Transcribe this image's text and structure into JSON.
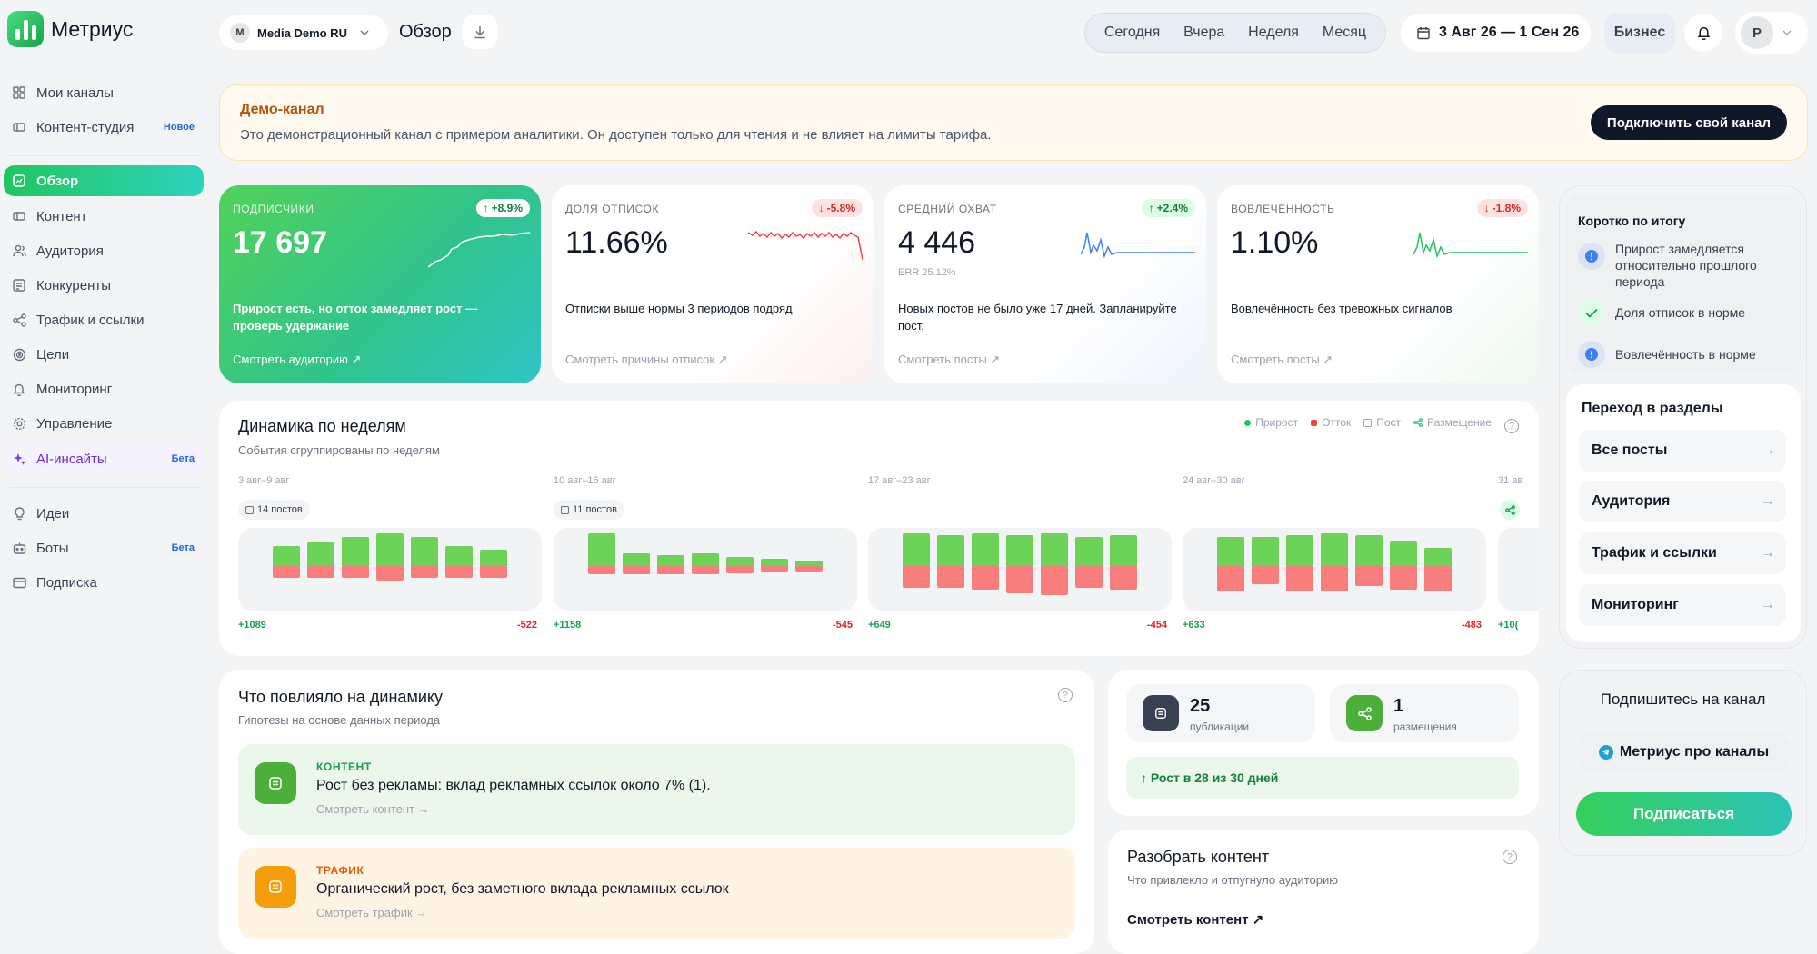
{
  "app": {
    "name": "Метриус"
  },
  "sidebar": {
    "items": [
      {
        "label": "Мои каналы",
        "icon": "grid-icon"
      },
      {
        "label": "Контент-студия",
        "badge": "Новое",
        "icon": "studio-icon"
      },
      {
        "label": "Обзор",
        "active": true,
        "icon": "overview-icon"
      },
      {
        "label": "Контент",
        "icon": "content-icon"
      },
      {
        "label": "Аудитория",
        "icon": "users-icon"
      },
      {
        "label": "Конкуренты",
        "icon": "competitors-icon"
      },
      {
        "label": "Трафик и ссылки",
        "icon": "share-icon"
      },
      {
        "label": "Цели",
        "icon": "target-icon"
      },
      {
        "label": "Мониторинг",
        "icon": "bell-icon"
      },
      {
        "label": "Управление",
        "icon": "gear-icon"
      },
      {
        "label": "AI-инсайты",
        "badge": "Бета",
        "icon": "sparkle-icon"
      },
      {
        "label": "Идеи",
        "icon": "bulb-icon"
      },
      {
        "label": "Боты",
        "badge": "Бета",
        "icon": "bot-icon"
      },
      {
        "label": "Подписка",
        "icon": "card-icon"
      }
    ]
  },
  "header": {
    "workspace": {
      "initial": "M",
      "name": "Media Demo RU"
    },
    "page_title": "Обзор",
    "periods": [
      "Сегодня",
      "Вчера",
      "Неделя",
      "Месяц"
    ],
    "date_range": "3 Авг 26 — 1 Сен 26",
    "plan": "Бизнес",
    "avatar": "P"
  },
  "banner": {
    "title": "Демо-канал",
    "text": "Это демонстрационный канал с примером аналитики. Он доступен только для чтения и не влияет на лимиты тарифа.",
    "button": "Подключить свой канал"
  },
  "kpis": [
    {
      "label": "ПОДПИСЧИКИ",
      "value": "17 697",
      "delta": "+8.9%",
      "direction": "up",
      "desc": "Прирост есть, но отток замедляет рост — проверь удержание",
      "link": "Смотреть аудиторию ↗"
    },
    {
      "label": "ДОЛЯ ОТПИСОК",
      "value": "11.66%",
      "delta": "-5.8%",
      "direction": "down",
      "desc": "Отписки выше нормы 3 периодов подряд",
      "link": "Смотреть причины отписок ↗"
    },
    {
      "label": "СРЕДНИЙ ОХВАТ",
      "value": "4 446",
      "sub": "ERR 25.12%",
      "delta": "+2.4%",
      "direction": "up",
      "desc": "Новых постов не было уже 17 дней. Запланируйте пост.",
      "link": "Смотреть посты ↗"
    },
    {
      "label": "ВОВЛЕЧЁННОСТЬ",
      "value": "1.10%",
      "delta": "-1.8%",
      "direction": "down",
      "desc": "Вовлечённость без тревожных сигналов",
      "link": "Смотреть посты ↗"
    }
  ],
  "summary": {
    "title": "Коротко по итогу",
    "items": [
      {
        "text": "Прирост замедляется относительно прошлого периода",
        "kind": "info"
      },
      {
        "text": "Доля отписок в норме",
        "kind": "ok"
      },
      {
        "text": "Вовлечённость в норме",
        "kind": "info"
      }
    ],
    "nav_title": "Переход в разделы",
    "links": [
      "Все посты",
      "Аудитория",
      "Трафик и ссылки",
      "Мониторинг"
    ]
  },
  "weekly": {
    "title": "Динамика по неделям",
    "subtitle": "События сгруппированы по неделям",
    "legend": [
      "Прирост",
      "Отток",
      "Пост",
      "Размещение"
    ],
    "legend_colors": {
      "growth": "#6dd358",
      "churn": "#f87d7d"
    },
    "weeks": [
      {
        "label": "3 авг–9 авг",
        "posts": "14 постов",
        "plus": "+1089",
        "minus": "-522"
      },
      {
        "label": "10 авг–16 авг",
        "posts": "11 постов",
        "plus": "+1158",
        "minus": "-545"
      },
      {
        "label": "17 авг–23 авг",
        "plus": "+649",
        "minus": "-454"
      },
      {
        "label": "24 авг–30 авг",
        "plus": "+633",
        "minus": "-483"
      },
      {
        "label": "31 ав",
        "plus": "+10("
      }
    ]
  },
  "influence": {
    "title": "Что повлияло на динамику",
    "subtitle": "Гипотезы на основе данных периода",
    "cards": [
      {
        "category": "КОНТЕНТ",
        "text": "Рост без рекламы: вклад рекламных ссылок около 7% (1).",
        "link": "Смотреть контент →"
      },
      {
        "category": "ТРАФИК",
        "text": "Органический рост, без заметного вклада рекламных ссылок",
        "link": "Смотреть трафик →"
      }
    ]
  },
  "stats": {
    "publications": {
      "value": "25",
      "label": "публикации"
    },
    "placements": {
      "value": "1",
      "label": "размещения"
    },
    "growth": "↑ Рост в 28 из 30 дней"
  },
  "disassemble": {
    "title": "Разобрать контент",
    "subtitle": "Что привлекло и отпугнуло аудиторию",
    "link": "Смотреть контент ↗"
  },
  "subscribe": {
    "title": "Подпишитесь на канал",
    "channel": "Метриус про каналы",
    "button": "Подписаться"
  }
}
